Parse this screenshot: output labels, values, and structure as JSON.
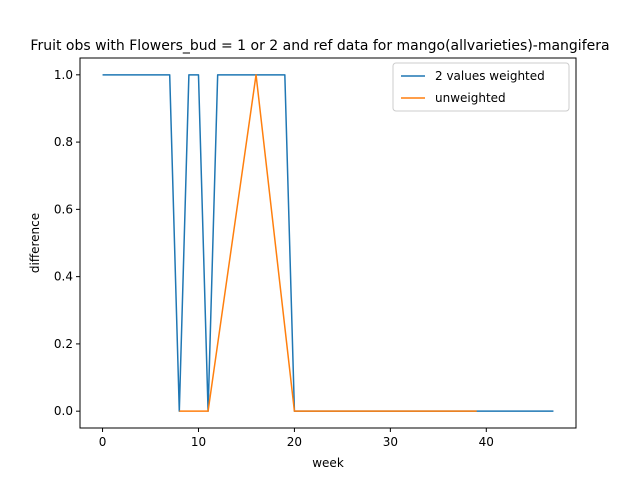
{
  "chart_data": {
    "type": "line",
    "title": "Fruit obs with Flowers_bud = 1 or 2 and ref data for mango(allvarieties)-mangifera",
    "xlabel": "week",
    "ylabel": "difference",
    "xlim": [
      -2.35,
      49.35
    ],
    "ylim": [
      -0.05,
      1.05
    ],
    "xticks": [
      0,
      10,
      20,
      30,
      40
    ],
    "yticks": [
      0.0,
      0.2,
      0.4,
      0.6,
      0.8,
      1.0
    ],
    "xtick_labels": [
      "0",
      "10",
      "20",
      "30",
      "40"
    ],
    "ytick_labels": [
      "0.0",
      "0.2",
      "0.4",
      "0.6",
      "0.8",
      "1.0"
    ],
    "legend_position": "upper right",
    "series": [
      {
        "name": "2 values weighted",
        "color": "#1f77b4",
        "x": [
          0,
          1,
          2,
          3,
          4,
          5,
          6,
          7,
          8,
          9,
          10,
          11,
          12,
          13,
          14,
          15,
          16,
          17,
          18,
          19,
          20,
          21,
          22,
          23,
          24,
          25,
          26,
          27,
          28,
          29,
          30,
          31,
          32,
          33,
          34,
          35,
          36,
          37,
          38,
          39,
          40,
          41,
          42,
          43,
          44,
          45,
          46,
          47
        ],
        "y": [
          1,
          1,
          1,
          1,
          1,
          1,
          1,
          1,
          0,
          1,
          1,
          0,
          1,
          1,
          1,
          1,
          1,
          1,
          1,
          1,
          0,
          0,
          0,
          0,
          0,
          0,
          0,
          0,
          0,
          0,
          0,
          0,
          0,
          0,
          0,
          0,
          0,
          0,
          0,
          0,
          0,
          0,
          0,
          0,
          0,
          0,
          0,
          0
        ]
      },
      {
        "name": "unweighted",
        "color": "#ff7f0e",
        "x": [
          8,
          11,
          16,
          20,
          39
        ],
        "y": [
          0,
          0,
          1,
          0,
          0
        ]
      }
    ]
  }
}
